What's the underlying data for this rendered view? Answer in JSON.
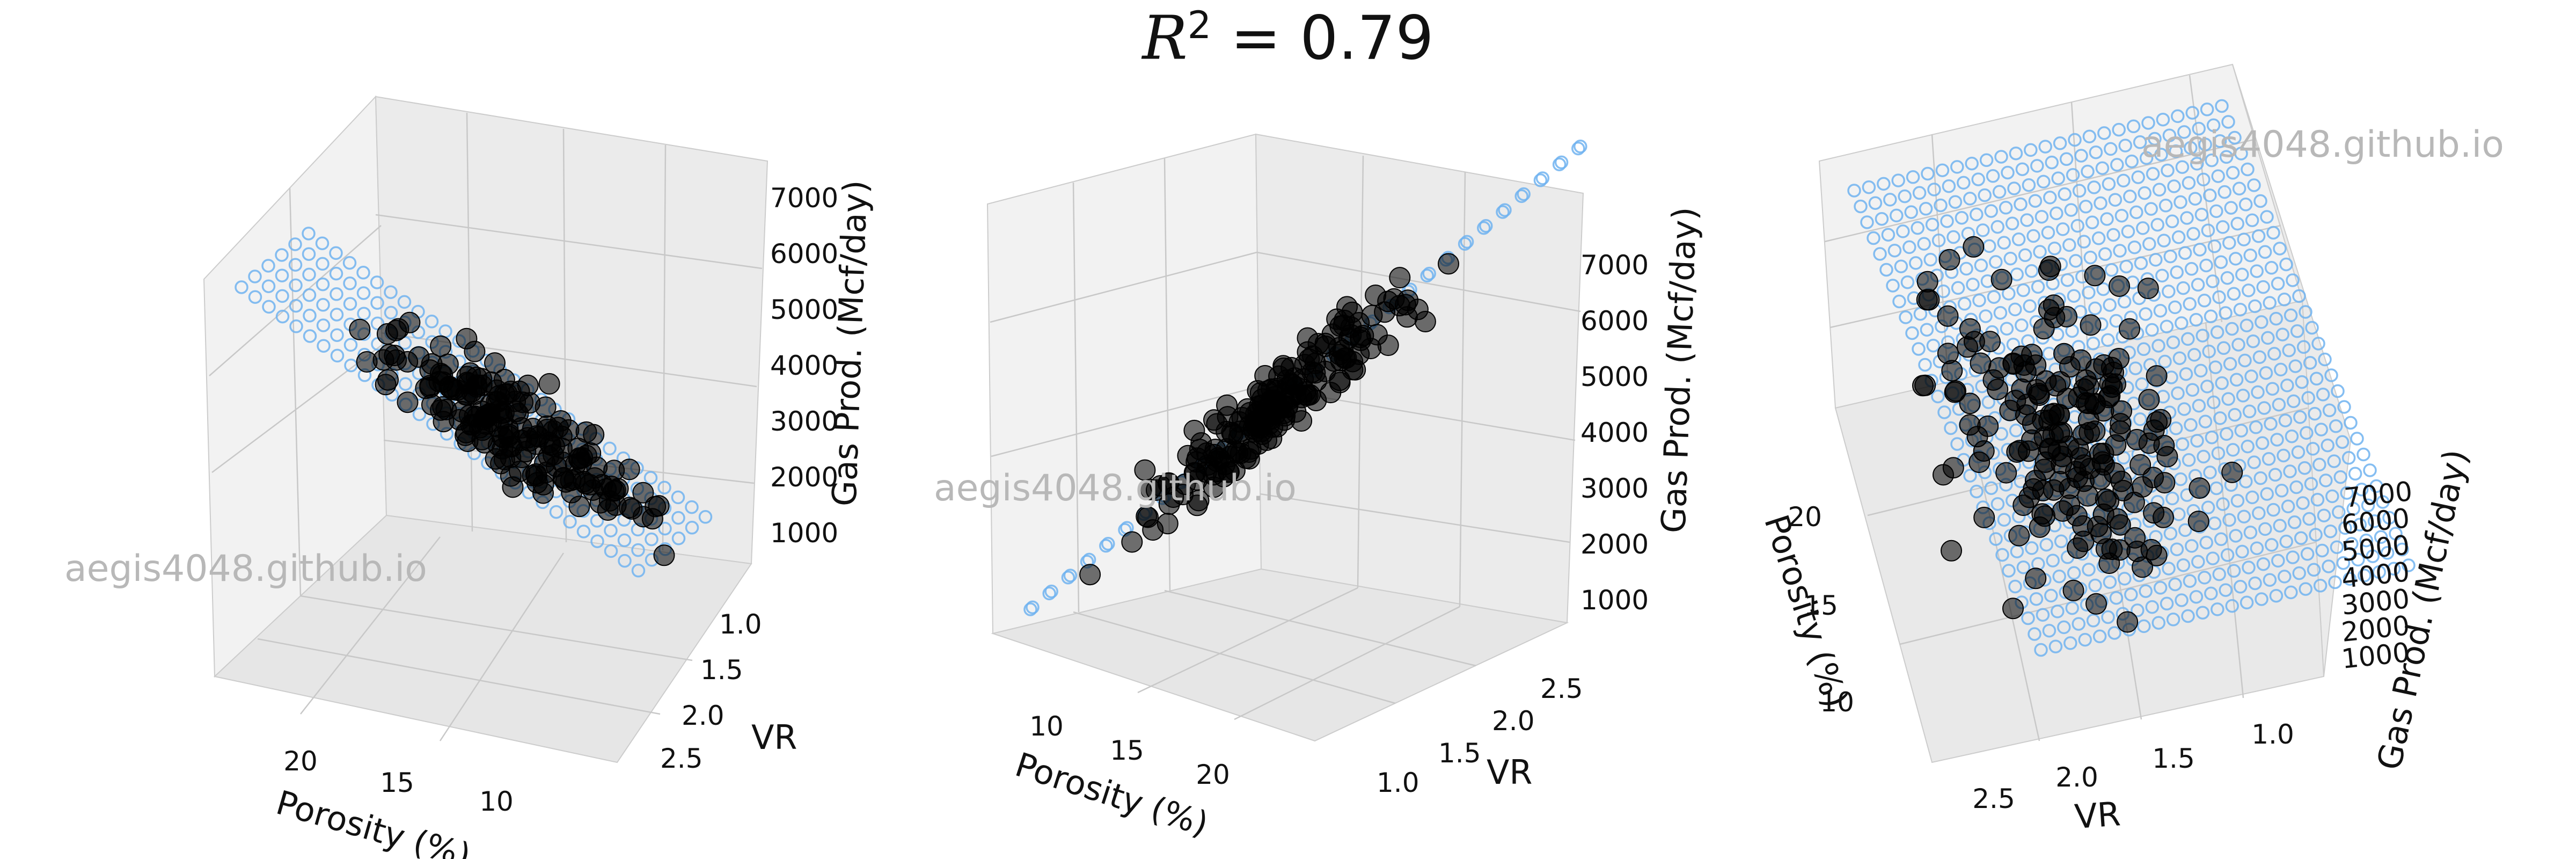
{
  "title": {
    "prefix": "R",
    "sup": "2",
    "suffix": " = 0.79"
  },
  "watermark": "aegis4048.github.io",
  "colors": {
    "plane": "#70B3F0",
    "points": "#000000",
    "pane": "#f2f2f2",
    "grid": "#c8c8c8"
  },
  "chart_data": [
    {
      "type": "scatter",
      "view": "left",
      "xlabel": "Porosity (%)",
      "ylabel": "VR",
      "zlabel": "Gas Prod. (Mcf/day)",
      "x_ticks": [
        "10",
        "15",
        "20"
      ],
      "y_ticks": [
        "1.0",
        "1.5",
        "2.0",
        "2.5"
      ],
      "z_ticks": [
        "1000",
        "2000",
        "3000",
        "4000",
        "5000",
        "6000",
        "7000"
      ],
      "xlim": [
        6,
        24
      ],
      "ylim": [
        0.8,
        2.7
      ],
      "zlim": [
        600,
        7800
      ],
      "legend": "none"
    },
    {
      "type": "scatter",
      "view": "center",
      "xlabel": "Porosity (%)",
      "ylabel": "VR",
      "zlabel": "Gas Prod. (Mcf/day)",
      "x_ticks": [
        "10",
        "15",
        "20"
      ],
      "y_ticks": [
        "1.0",
        "1.5",
        "2.0",
        "2.5"
      ],
      "z_ticks": [
        "1000",
        "2000",
        "3000",
        "4000",
        "5000",
        "6000",
        "7000"
      ],
      "xlim": [
        6,
        24
      ],
      "ylim": [
        0.8,
        2.7
      ],
      "zlim": [
        600,
        7800
      ],
      "legend": "none"
    },
    {
      "type": "scatter",
      "view": "right",
      "xlabel": "Porosity (%)",
      "ylabel": "VR",
      "zlabel": "Gas Prod. (Mcf/day)",
      "x_ticks": [
        "10",
        "15",
        "20"
      ],
      "y_ticks": [
        "1.0",
        "1.5",
        "2.0",
        "2.5"
      ],
      "z_ticks": [
        "1000",
        "2000",
        "3000",
        "4000",
        "5000",
        "6000",
        "7000"
      ],
      "xlim": [
        6,
        24
      ],
      "ylim": [
        0.8,
        2.7
      ],
      "zlim": [
        600,
        7800
      ],
      "legend": "none"
    }
  ]
}
